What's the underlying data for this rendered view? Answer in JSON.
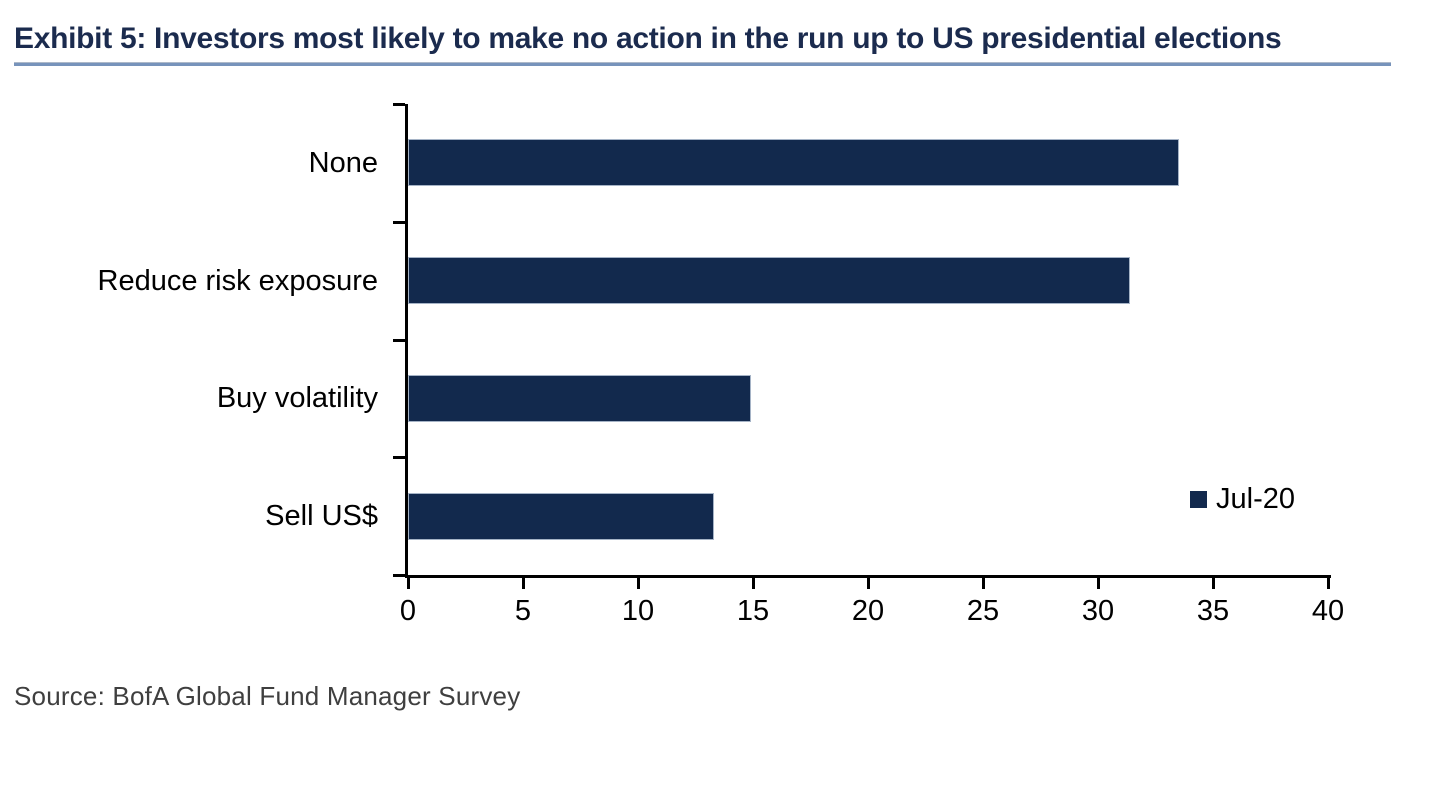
{
  "header": {
    "title": "Exhibit 5: Investors most likely to make no action in the run up to US presidential elections"
  },
  "legend": {
    "label": "Jul-20"
  },
  "footer": {
    "source": "Source: BofA Global Fund Manager Survey"
  },
  "colors": {
    "bar": "#12294d",
    "title_text": "#1b2b4e",
    "underline": "#7793bb",
    "axis": "#000000",
    "source_text": "#3f3f3f"
  },
  "chart_data": {
    "type": "bar",
    "orientation": "horizontal",
    "title": "Exhibit 5: Investors most likely to make no action in the run up to US presidential elections",
    "categories": [
      "None",
      "Reduce risk exposure",
      "Buy volatility",
      "Sell US$"
    ],
    "series": [
      {
        "name": "Jul-20",
        "values": [
          33.5,
          31.4,
          14.9,
          13.3
        ]
      }
    ],
    "xlabel": "",
    "ylabel": "",
    "xlim": [
      0,
      40
    ],
    "xticks": [
      0,
      5,
      10,
      15,
      20,
      25,
      30,
      35,
      40
    ],
    "grid": false,
    "legend_position": "middle-right"
  }
}
